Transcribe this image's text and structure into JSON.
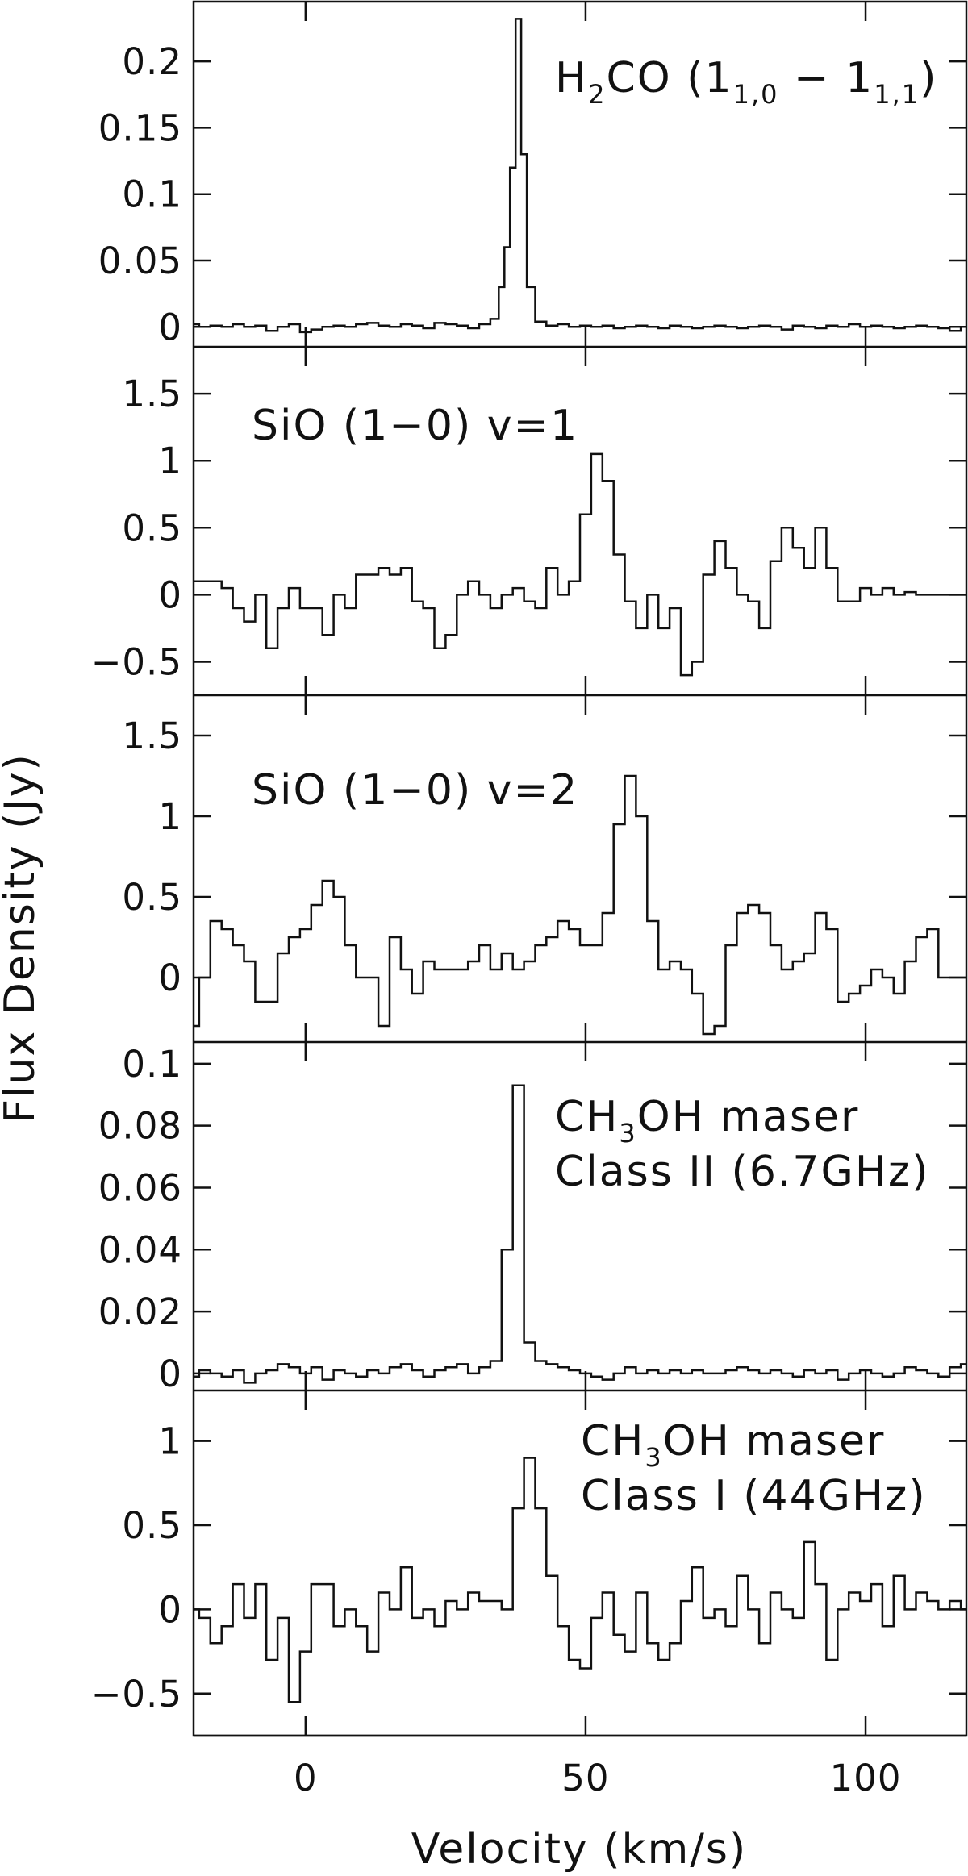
{
  "chart_data": {
    "type": "line",
    "xlabel": "Velocity (km/s)",
    "ylabel": "Flux Density (Jy)",
    "xlim": [
      -20,
      118
    ],
    "x_ticks": [
      0,
      50,
      100
    ],
    "x_tick_labels": [
      "0",
      "50",
      "100"
    ],
    "grid": false,
    "panels": [
      {
        "id": "h2co",
        "label": [
          {
            "t": "H",
            "s": null
          },
          {
            "t": "2",
            "s": "sub"
          },
          {
            "t": "CO (1",
            "s": null
          },
          {
            "t": "1,0",
            "s": "sub"
          },
          {
            "t": " − 1",
            "s": null
          },
          {
            "t": "1,1",
            "s": "sub"
          },
          {
            "t": ")",
            "s": null
          }
        ],
        "label_lines": [
          "H2CO (1_1,0 − 1_1,1)"
        ],
        "ylim": [
          -0.015,
          0.245
        ],
        "y_ticks": [
          0,
          0.05,
          0.1,
          0.15,
          0.2
        ],
        "y_tick_labels": [
          "0",
          "0.05",
          "0.1",
          "0.15",
          "0.2"
        ],
        "x": [
          -20,
          -18,
          -16,
          -14,
          -12,
          -10,
          -8,
          -6,
          -4,
          -2,
          0,
          2,
          4,
          6,
          8,
          10,
          12,
          14,
          16,
          18,
          20,
          22,
          24,
          26,
          28,
          30,
          32,
          34,
          35,
          36,
          37,
          38,
          39,
          40,
          42,
          44,
          46,
          48,
          50,
          52,
          54,
          56,
          58,
          60,
          62,
          64,
          66,
          68,
          70,
          72,
          74,
          76,
          78,
          80,
          82,
          84,
          86,
          88,
          90,
          92,
          94,
          96,
          98,
          100,
          102,
          104,
          106,
          108,
          110,
          112,
          114,
          116,
          118
        ],
        "values": [
          0.002,
          0,
          0.001,
          0,
          0.002,
          0,
          0.001,
          -0.003,
          0,
          0.002,
          -0.004,
          -0.002,
          0,
          0.001,
          0,
          0.002,
          0.003,
          0.001,
          0,
          0.002,
          0.001,
          -0.001,
          0.003,
          0.002,
          0.001,
          -0.001,
          0.002,
          0.006,
          0.03,
          0.06,
          0.12,
          0.232,
          0.13,
          0.03,
          0.004,
          0.001,
          0.002,
          0,
          0.001,
          0,
          0.001,
          -0.001,
          0,
          0.001,
          0,
          -0.001,
          0.001,
          0,
          -0.001,
          0,
          0.001,
          0,
          -0.001,
          0,
          0.001,
          0,
          -0.002,
          0.001,
          0,
          -0.001,
          0.001,
          0,
          0.002,
          0,
          0.001,
          0,
          -0.001,
          0,
          0.001,
          0,
          -0.001,
          -0.003,
          0
        ]
      },
      {
        "id": "sio-v1",
        "label": [
          {
            "t": "SiO (1−0) v=1",
            "s": null
          }
        ],
        "label_lines": [
          "SiO (1−0) v=1"
        ],
        "ylim": [
          -0.75,
          1.85
        ],
        "y_ticks": [
          -0.5,
          0,
          0.5,
          1,
          1.5
        ],
        "y_tick_labels": [
          "−0.5",
          "0",
          "0.5",
          "1",
          "1.5"
        ],
        "x": [
          -20,
          -18,
          -16,
          -14,
          -12,
          -10,
          -8,
          -6,
          -4,
          -2,
          0,
          2,
          4,
          6,
          8,
          10,
          12,
          14,
          16,
          18,
          20,
          22,
          24,
          26,
          28,
          30,
          32,
          34,
          36,
          38,
          40,
          42,
          44,
          46,
          48,
          50,
          52,
          54,
          56,
          58,
          60,
          62,
          64,
          66,
          68,
          70,
          72,
          74,
          76,
          78,
          80,
          82,
          84,
          86,
          88,
          90,
          92,
          94,
          96,
          98,
          100,
          102,
          104,
          106,
          108,
          110,
          112,
          114,
          116,
          118
        ],
        "values": [
          0.1,
          0.1,
          0.1,
          0.05,
          -0.1,
          -0.2,
          0.0,
          -0.4,
          -0.1,
          0.05,
          -0.1,
          -0.1,
          -0.3,
          0.0,
          -0.1,
          0.15,
          0.15,
          0.2,
          0.15,
          0.2,
          -0.05,
          -0.1,
          -0.4,
          -0.3,
          0.0,
          0.1,
          0.0,
          -0.1,
          0.0,
          0.05,
          -0.05,
          -0.1,
          0.2,
          0.0,
          0.1,
          0.6,
          1.05,
          0.85,
          0.3,
          -0.05,
          -0.25,
          0.0,
          -0.25,
          -0.1,
          -0.6,
          -0.5,
          0.15,
          0.4,
          0.2,
          0.0,
          -0.05,
          -0.25,
          0.25,
          0.5,
          0.35,
          0.2,
          0.5,
          0.2,
          -0.05,
          -0.05,
          0.05,
          0.0,
          0.05,
          0.0,
          0.02,
          0.0,
          0.0,
          0.0,
          0.0,
          0.0
        ]
      },
      {
        "id": "sio-v2",
        "label": [
          {
            "t": "SiO (1−0) v=2",
            "s": null
          }
        ],
        "label_lines": [
          "SiO (1−0) v=2"
        ],
        "ylim": [
          -0.4,
          1.75
        ],
        "y_ticks": [
          0,
          0.5,
          1,
          1.5
        ],
        "y_tick_labels": [
          "0",
          "0.5",
          "1",
          "1.5"
        ],
        "x": [
          -20,
          -18,
          -16,
          -14,
          -12,
          -10,
          -8,
          -6,
          -4,
          -2,
          0,
          2,
          4,
          6,
          8,
          10,
          12,
          14,
          16,
          18,
          20,
          22,
          24,
          26,
          28,
          30,
          32,
          34,
          36,
          38,
          40,
          42,
          44,
          46,
          48,
          50,
          52,
          54,
          56,
          58,
          60,
          62,
          64,
          66,
          68,
          70,
          72,
          74,
          76,
          78,
          80,
          82,
          84,
          86,
          88,
          90,
          92,
          94,
          96,
          98,
          100,
          102,
          104,
          106,
          108,
          110,
          112,
          114,
          116,
          118
        ],
        "values": [
          -0.3,
          0.0,
          0.35,
          0.3,
          0.2,
          0.1,
          -0.15,
          -0.15,
          0.15,
          0.25,
          0.3,
          0.45,
          0.6,
          0.5,
          0.2,
          0.0,
          0.0,
          -0.3,
          0.25,
          0.05,
          -0.1,
          0.1,
          0.05,
          0.05,
          0.05,
          0.1,
          0.2,
          0.05,
          0.15,
          0.05,
          0.1,
          0.2,
          0.25,
          0.35,
          0.3,
          0.2,
          0.2,
          0.4,
          0.95,
          1.25,
          1.0,
          0.35,
          0.05,
          0.1,
          0.05,
          -0.1,
          -0.35,
          -0.3,
          0.2,
          0.4,
          0.45,
          0.4,
          0.2,
          0.05,
          0.1,
          0.15,
          0.4,
          0.3,
          -0.15,
          -0.1,
          -0.05,
          0.05,
          0.0,
          -0.1,
          0.1,
          0.25,
          0.3,
          0.0,
          0.0,
          0.0
        ]
      },
      {
        "id": "ch3oh-ii",
        "label": [
          {
            "t": "CH",
            "s": null
          },
          {
            "t": "3",
            "s": "sub"
          },
          {
            "t": "OH maser",
            "s": null
          }
        ],
        "label2": "Class II (6.7GHz)",
        "label_lines": [
          "CH3OH maser",
          "Class II (6.7GHz)"
        ],
        "ylim": [
          -0.0055,
          0.107
        ],
        "y_ticks": [
          0,
          0.02,
          0.04,
          0.06,
          0.08,
          0.1
        ],
        "y_tick_labels": [
          "0",
          "0.02",
          "0.04",
          "0.06",
          "0.08",
          "0.1"
        ],
        "x": [
          -20,
          -18,
          -16,
          -14,
          -12,
          -10,
          -8,
          -6,
          -4,
          -2,
          0,
          2,
          4,
          6,
          8,
          10,
          12,
          14,
          16,
          18,
          20,
          22,
          24,
          26,
          28,
          30,
          32,
          34,
          36,
          38,
          40,
          42,
          44,
          46,
          48,
          50,
          52,
          54,
          56,
          58,
          60,
          62,
          64,
          66,
          68,
          70,
          72,
          74,
          76,
          78,
          80,
          82,
          84,
          86,
          88,
          90,
          92,
          94,
          96,
          98,
          100,
          102,
          104,
          106,
          108,
          110,
          112,
          114,
          116,
          118
        ],
        "values": [
          -0.001,
          0.001,
          0.0,
          -0.001,
          0.001,
          -0.003,
          0.0,
          0.001,
          0.003,
          0.002,
          0.0,
          0.002,
          -0.002,
          0.001,
          0.0,
          -0.001,
          0.001,
          0.0,
          0.002,
          0.003,
          0.001,
          -0.001,
          0.001,
          0.002,
          0.003,
          0.0,
          0.002,
          0.004,
          0.04,
          0.093,
          0.01,
          0.004,
          0.003,
          0.002,
          0.001,
          0.0,
          -0.001,
          -0.002,
          0.0,
          0.002,
          0.0,
          0.001,
          0.0,
          0.001,
          0.0,
          0.001,
          0.0,
          0.0,
          0.001,
          0.002,
          0.001,
          0.0,
          0.001,
          0.0,
          -0.001,
          0.001,
          0.0,
          0.001,
          -0.002,
          0.0,
          0.001,
          0.0,
          -0.001,
          0.0,
          0.002,
          0.001,
          0.0,
          -0.001,
          0.002,
          0.003
        ]
      },
      {
        "id": "ch3oh-i",
        "label": [
          {
            "t": "CH",
            "s": null
          },
          {
            "t": "3",
            "s": "sub"
          },
          {
            "t": "OH maser",
            "s": null
          }
        ],
        "label2": "Class I (44GHz)",
        "label_lines": [
          "CH3OH maser",
          "Class I (44GHz)"
        ],
        "ylim": [
          -0.75,
          1.3
        ],
        "y_ticks": [
          -0.5,
          0,
          0.5,
          1
        ],
        "y_tick_labels": [
          "−0.5",
          "0",
          "0.5",
          "1"
        ],
        "x": [
          -20,
          -18,
          -16,
          -14,
          -12,
          -10,
          -8,
          -6,
          -4,
          -2,
          0,
          2,
          4,
          6,
          8,
          10,
          12,
          14,
          16,
          18,
          20,
          22,
          24,
          26,
          28,
          30,
          32,
          34,
          36,
          38,
          40,
          42,
          44,
          46,
          48,
          50,
          52,
          54,
          56,
          58,
          60,
          62,
          64,
          66,
          68,
          70,
          72,
          74,
          76,
          78,
          80,
          82,
          84,
          86,
          88,
          90,
          92,
          94,
          96,
          98,
          100,
          102,
          104,
          106,
          108,
          110,
          112,
          114,
          116,
          118
        ],
        "values": [
          0.0,
          -0.05,
          -0.2,
          -0.1,
          0.15,
          -0.05,
          0.15,
          -0.3,
          -0.05,
          -0.55,
          -0.25,
          0.15,
          0.15,
          -0.1,
          0.0,
          -0.1,
          -0.25,
          0.1,
          0.0,
          0.25,
          -0.05,
          0.0,
          -0.1,
          0.05,
          0.0,
          0.1,
          0.05,
          0.05,
          0.0,
          0.6,
          0.9,
          0.6,
          0.2,
          -0.1,
          -0.3,
          -0.35,
          -0.05,
          0.1,
          -0.15,
          -0.25,
          0.1,
          -0.2,
          -0.3,
          -0.2,
          0.05,
          0.25,
          -0.05,
          0.0,
          -0.1,
          0.2,
          0.0,
          -0.2,
          0.1,
          0.0,
          -0.05,
          0.4,
          0.15,
          -0.3,
          0.0,
          0.1,
          0.05,
          0.15,
          -0.1,
          0.2,
          0.0,
          0.1,
          0.05,
          0.0,
          0.05,
          0.0
        ]
      }
    ]
  }
}
